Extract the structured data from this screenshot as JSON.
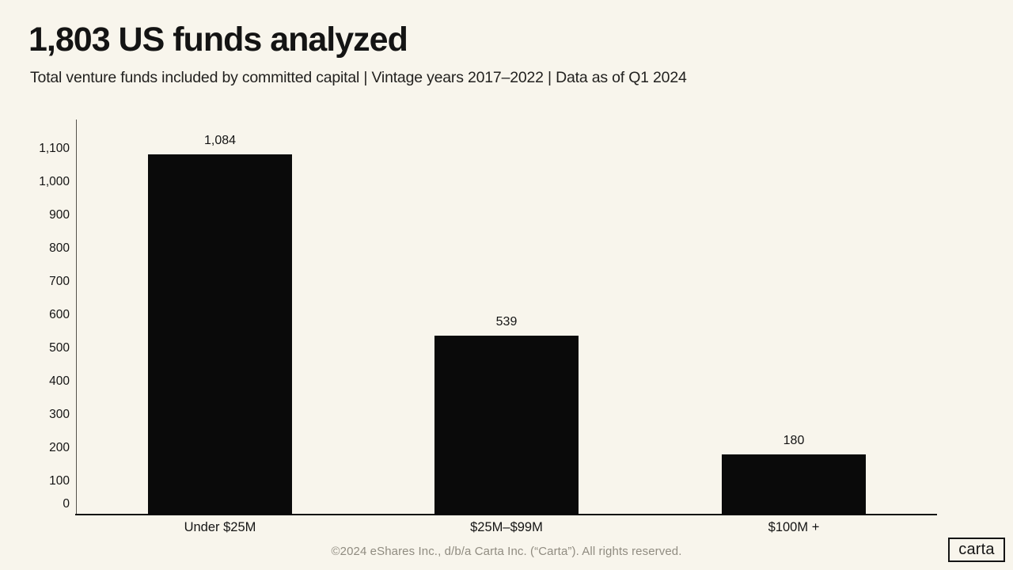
{
  "page": {
    "title": "1,803 US funds analyzed",
    "subtitle": "Total venture funds included by committed capital | Vintage years 2017–2022 | Data as of Q1 2024",
    "footer": "©2024 eShares Inc., d/b/a Carta Inc. (“Carta”). All rights reserved.",
    "logo_text": "carta",
    "colors": {
      "background": "#f8f5ec",
      "bar": "#0a0a0a",
      "text": "#141414",
      "footer_text": "#908c81",
      "y_axis_line": "#55524c",
      "x_axis_line": "#141414"
    }
  },
  "chart_data": {
    "type": "bar",
    "title": "1,803 US funds analyzed",
    "subtitle": "Total venture funds included by committed capital | Vintage years 2017–2022 | Data as of Q1 2024",
    "categories": [
      "Under $25M",
      "$25M–$99M",
      "$100M +"
    ],
    "values": [
      1084,
      539,
      180
    ],
    "value_labels": [
      "1,084",
      "539",
      "180"
    ],
    "xlabel": "",
    "ylabel": "",
    "ylim": [
      0,
      1100
    ],
    "ytick_step": 100,
    "ytick_labels": [
      "0",
      "100",
      "200",
      "300",
      "400",
      "500",
      "600",
      "700",
      "800",
      "900",
      "1,000",
      "1,100"
    ],
    "grid": false,
    "legend": "none",
    "bar_color": "#0a0a0a"
  }
}
